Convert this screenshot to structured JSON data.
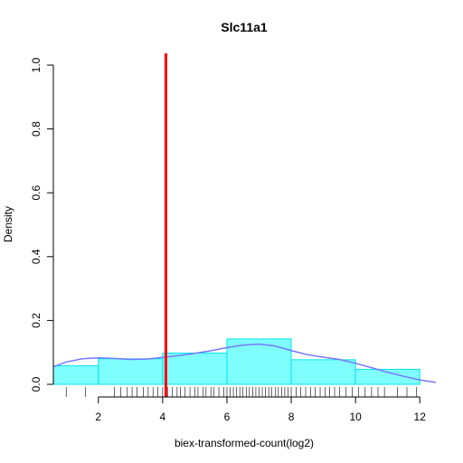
{
  "chart_data": {
    "type": "histogram",
    "title": "Slc11a1",
    "xlabel": "biex-transformed-count(log2)",
    "ylabel": "Density",
    "xlim": [
      0.6,
      12.5
    ],
    "ylim": [
      0,
      1.0
    ],
    "x_ticks": [
      2,
      4,
      6,
      8,
      10,
      12
    ],
    "y_ticks": [
      0.0,
      0.2,
      0.4,
      0.6,
      0.8,
      1.0
    ],
    "x_tick_labels": [
      "2",
      "4",
      "6",
      "8",
      "10",
      "12"
    ],
    "y_tick_labels": [
      "0.0",
      "0.2",
      "0.4",
      "0.6",
      "0.8",
      "1.0"
    ],
    "bins": [
      {
        "x0": 0.6,
        "x1": 2.0,
        "density": 0.058
      },
      {
        "x0": 2.0,
        "x1": 4.0,
        "density": 0.08
      },
      {
        "x0": 4.0,
        "x1": 6.0,
        "density": 0.098
      },
      {
        "x0": 6.0,
        "x1": 8.0,
        "density": 0.142
      },
      {
        "x0": 8.0,
        "x1": 10.0,
        "density": 0.077
      },
      {
        "x0": 10.0,
        "x1": 12.0,
        "density": 0.047
      }
    ],
    "density_curve": {
      "x": [
        0.6,
        1.0,
        1.5,
        2.0,
        2.5,
        3.0,
        3.5,
        4.0,
        4.5,
        5.0,
        5.5,
        6.0,
        6.5,
        7.0,
        7.5,
        8.0,
        8.5,
        9.0,
        9.5,
        10.0,
        10.5,
        11.0,
        11.5,
        12.0,
        12.5
      ],
      "y": [
        0.055,
        0.07,
        0.08,
        0.083,
        0.081,
        0.078,
        0.079,
        0.084,
        0.09,
        0.097,
        0.105,
        0.115,
        0.123,
        0.126,
        0.12,
        0.106,
        0.093,
        0.085,
        0.078,
        0.066,
        0.052,
        0.038,
        0.025,
        0.014,
        0.006
      ]
    },
    "vline": {
      "x": 4.1,
      "color": "#ff0000"
    },
    "rug": [
      1.0,
      1.6,
      2.5,
      2.7,
      2.9,
      3.05,
      3.2,
      3.4,
      3.55,
      3.7,
      3.85,
      4.0,
      4.15,
      4.3,
      4.45,
      4.55,
      4.7,
      4.85,
      5.0,
      5.1,
      5.25,
      5.35,
      5.5,
      5.6,
      5.75,
      5.9,
      6.0,
      6.1,
      6.2,
      6.3,
      6.4,
      6.5,
      6.6,
      6.7,
      6.8,
      6.9,
      7.0,
      7.1,
      7.2,
      7.3,
      7.4,
      7.5,
      7.6,
      7.7,
      7.8,
      7.9,
      8.0,
      8.15,
      8.3,
      8.45,
      8.6,
      8.75,
      8.9,
      9.05,
      9.2,
      9.35,
      9.5,
      9.7,
      9.9,
      10.1,
      10.3,
      10.5,
      10.7,
      10.9,
      11.3,
      11.6,
      11.9
    ],
    "colors": {
      "bar_fill": "#80ffff",
      "bar_edge": "#00e5ee",
      "curve": "#7777ff",
      "vline": "#ff0000",
      "rug": "#000000"
    },
    "grid": false
  }
}
